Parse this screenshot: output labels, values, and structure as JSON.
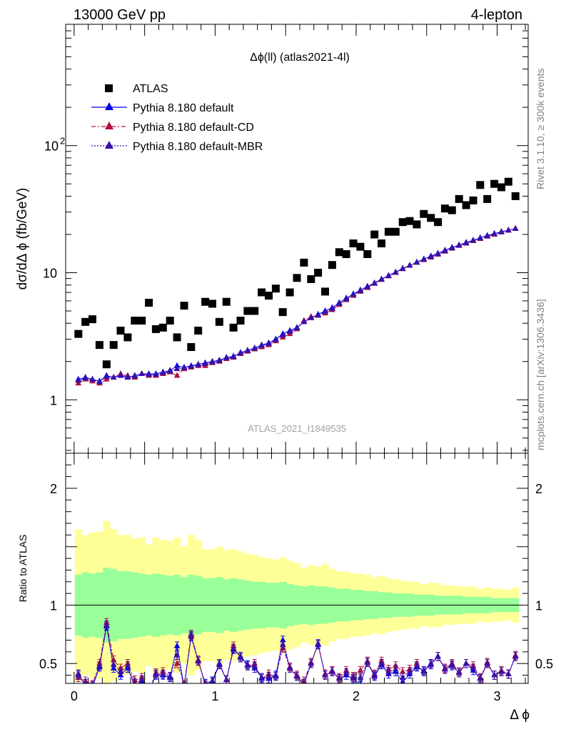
{
  "header": {
    "left": "13000 GeV pp",
    "right": "4-lepton"
  },
  "side_text": {
    "rivet": "Rivet 3.1.10, ≥ 300k events",
    "mcplots": "mcplots.cern.ch [arXiv:1306.3436]"
  },
  "chart_data": [
    {
      "type": "scatter",
      "title": "Δϕ(ll) (atlas2021-4l)",
      "ylabel": "dσ/dΔ ϕ (fb/GeV)",
      "xlabel": "",
      "yscale": "log",
      "xlim": [
        -0.06,
        3.22
      ],
      "ylim": [
        0.38,
        900
      ],
      "y_ticks": [
        {
          "value": 1,
          "label": "1"
        },
        {
          "value": 10,
          "label": "10"
        },
        {
          "value": 100,
          "label": "10²"
        }
      ],
      "watermark": "ATLAS_2021_I1849535",
      "legend_position": "top-left",
      "legend": [
        "ATLAS",
        "Pythia 8.180 default",
        "Pythia 8.180 default-CD",
        "Pythia 8.180 default-MBR"
      ],
      "colors": {
        "ATLAS": "#000000",
        "default": "#0000ee",
        "CD": "#b0103a",
        "MBR": "#3a10a8"
      },
      "x": [
        0.03,
        0.08,
        0.13,
        0.18,
        0.23,
        0.28,
        0.33,
        0.38,
        0.43,
        0.48,
        0.53,
        0.58,
        0.63,
        0.68,
        0.73,
        0.78,
        0.83,
        0.88,
        0.93,
        0.98,
        1.03,
        1.08,
        1.13,
        1.18,
        1.23,
        1.28,
        1.33,
        1.38,
        1.43,
        1.48,
        1.53,
        1.58,
        1.63,
        1.68,
        1.73,
        1.78,
        1.83,
        1.88,
        1.93,
        1.98,
        2.03,
        2.08,
        2.13,
        2.18,
        2.23,
        2.28,
        2.33,
        2.38,
        2.43,
        2.48,
        2.53,
        2.58,
        2.63,
        2.68,
        2.73,
        2.78,
        2.83,
        2.88,
        2.93,
        2.98,
        3.03,
        3.08,
        3.13
      ],
      "series": [
        {
          "name": "ATLAS",
          "values": [
            3.3,
            4.1,
            4.3,
            2.7,
            1.9,
            2.7,
            3.5,
            3.1,
            4.2,
            4.2,
            5.8,
            3.6,
            3.7,
            4.2,
            3.1,
            5.5,
            2.6,
            3.5,
            5.9,
            5.7,
            4.1,
            5.9,
            3.7,
            4.2,
            5.0,
            5.0,
            7.0,
            6.6,
            7.5,
            4.9,
            7.0,
            9.1,
            12.0,
            8.9,
            10.0,
            7.1,
            11.5,
            14.5,
            14.0,
            17.0,
            16.0,
            14.0,
            20.0,
            17.0,
            21.0,
            21.0,
            25.0,
            25.5,
            24.0,
            29.0,
            27.0,
            25.0,
            32.0,
            31.0,
            38.0,
            34.0,
            37.0,
            49.0,
            38.0,
            50.0,
            47.0,
            52.0,
            40.0
          ]
        },
        {
          "name": "Pythia 8.180 default",
          "values": [
            1.45,
            1.5,
            1.45,
            1.4,
            1.55,
            1.5,
            1.55,
            1.5,
            1.55,
            1.6,
            1.6,
            1.6,
            1.65,
            1.7,
            1.85,
            1.8,
            1.85,
            1.9,
            1.95,
            2.0,
            2.05,
            2.15,
            2.2,
            2.35,
            2.45,
            2.55,
            2.7,
            2.8,
            3.0,
            3.3,
            3.5,
            3.7,
            4.1,
            4.4,
            4.7,
            5.0,
            5.3,
            5.8,
            6.3,
            6.8,
            7.3,
            7.8,
            8.3,
            8.9,
            9.5,
            10.1,
            10.8,
            11.4,
            12.1,
            12.8,
            13.5,
            14.2,
            15.0,
            15.8,
            16.5,
            17.3,
            18.0,
            18.8,
            19.6,
            20.3,
            21.0,
            21.6,
            22.2
          ]
        },
        {
          "name": "Pythia 8.180 default-CD",
          "values": [
            1.35,
            1.45,
            1.4,
            1.35,
            1.45,
            1.5,
            1.6,
            1.55,
            1.5,
            1.6,
            1.55,
            1.55,
            1.6,
            1.65,
            1.55,
            1.75,
            1.8,
            1.85,
            1.85,
            1.95,
            2.0,
            2.1,
            2.15,
            2.3,
            2.4,
            2.5,
            2.6,
            2.7,
            2.9,
            3.1,
            3.3,
            3.6,
            4.2,
            4.5,
            4.6,
            4.8,
            5.1,
            5.6,
            6.1,
            6.6,
            7.1,
            7.6,
            8.2,
            8.8,
            9.4,
            10.0,
            10.7,
            11.4,
            12.0,
            12.6,
            13.2,
            13.9,
            14.7,
            15.5,
            16.3,
            17.0,
            17.8,
            18.5,
            19.3,
            20.0,
            20.8,
            21.5,
            22.2
          ]
        },
        {
          "name": "Pythia 8.180 default-MBR",
          "values": [
            1.42,
            1.48,
            1.44,
            1.38,
            1.52,
            1.5,
            1.57,
            1.52,
            1.53,
            1.6,
            1.58,
            1.58,
            1.63,
            1.68,
            1.75,
            1.78,
            1.83,
            1.88,
            1.92,
            1.98,
            2.03,
            2.13,
            2.18,
            2.33,
            2.43,
            2.53,
            2.66,
            2.76,
            2.96,
            3.22,
            3.43,
            3.66,
            4.12,
            4.42,
            4.63,
            4.9,
            5.2,
            5.7,
            6.2,
            6.7,
            7.2,
            7.7,
            8.25,
            8.85,
            9.45,
            10.05,
            10.75,
            11.4,
            12.05,
            12.7,
            13.35,
            14.05,
            14.85,
            15.65,
            16.4,
            17.15,
            17.9,
            18.65,
            19.45,
            20.15,
            20.9,
            21.55,
            22.2
          ]
        }
      ]
    },
    {
      "type": "line",
      "ylabel": "Ratio to ATLAS",
      "xlabel": "Δ ϕ",
      "xlim": [
        -0.06,
        3.22
      ],
      "ylim": [
        0.33,
        2.3
      ],
      "x_ticks": [
        0,
        1,
        2,
        3
      ],
      "y_ticks": [
        0.5,
        1,
        2
      ],
      "bands": {
        "inner_color": "#99ff99",
        "outer_color": "#ffff99",
        "inner_half_width": [
          0.26,
          0.28,
          0.27,
          0.28,
          0.32,
          0.31,
          0.29,
          0.29,
          0.28,
          0.27,
          0.26,
          0.27,
          0.26,
          0.25,
          0.26,
          0.24,
          0.26,
          0.25,
          0.23,
          0.23,
          0.24,
          0.22,
          0.23,
          0.22,
          0.21,
          0.2,
          0.2,
          0.19,
          0.19,
          0.2,
          0.18,
          0.17,
          0.16,
          0.17,
          0.16,
          0.16,
          0.15,
          0.14,
          0.14,
          0.13,
          0.13,
          0.12,
          0.12,
          0.11,
          0.11,
          0.1,
          0.1,
          0.1,
          0.09,
          0.09,
          0.09,
          0.08,
          0.08,
          0.08,
          0.08,
          0.07,
          0.07,
          0.07,
          0.07,
          0.06,
          0.06,
          0.06,
          0.06
        ],
        "outer_half_width": [
          0.65,
          0.6,
          0.62,
          0.63,
          0.72,
          0.65,
          0.6,
          0.6,
          0.57,
          0.58,
          0.52,
          0.58,
          0.56,
          0.55,
          0.58,
          0.5,
          0.6,
          0.56,
          0.48,
          0.48,
          0.5,
          0.47,
          0.48,
          0.46,
          0.44,
          0.43,
          0.41,
          0.4,
          0.39,
          0.41,
          0.38,
          0.36,
          0.32,
          0.34,
          0.33,
          0.35,
          0.31,
          0.29,
          0.29,
          0.27,
          0.27,
          0.26,
          0.24,
          0.25,
          0.23,
          0.22,
          0.21,
          0.2,
          0.2,
          0.18,
          0.19,
          0.19,
          0.17,
          0.17,
          0.16,
          0.16,
          0.16,
          0.14,
          0.15,
          0.14,
          0.14,
          0.13,
          0.15
        ]
      },
      "series": [
        {
          "name": "Pythia 8.180 default",
          "values": [
            0.41,
            0.31,
            0.3,
            0.47,
            0.82,
            0.46,
            0.4,
            0.46,
            0.31,
            0.35,
            0.26,
            0.4,
            0.4,
            0.38,
            0.65,
            0.3,
            0.73,
            0.52,
            0.33,
            0.35,
            0.5,
            0.36,
            0.62,
            0.56,
            0.49,
            0.46,
            0.38,
            0.37,
            0.4,
            0.7,
            0.46,
            0.39,
            0.32,
            0.5,
            0.67,
            0.4,
            0.43,
            0.37,
            0.4,
            0.37,
            0.32,
            0.51,
            0.39,
            0.49,
            0.41,
            0.43,
            0.34,
            0.41,
            0.47,
            0.44,
            0.5,
            0.56,
            0.45,
            0.48,
            0.42,
            0.5,
            0.44,
            0.37,
            0.5,
            0.4,
            0.43,
            0.41,
            0.56
          ]
        },
        {
          "name": "Pythia 8.180 default-CD",
          "values": [
            0.38,
            0.35,
            0.32,
            0.5,
            0.85,
            0.53,
            0.46,
            0.5,
            0.36,
            0.38,
            0.27,
            0.42,
            0.43,
            0.39,
            0.5,
            0.32,
            0.75,
            0.53,
            0.31,
            0.34,
            0.49,
            0.36,
            0.65,
            0.55,
            0.48,
            0.5,
            0.37,
            0.41,
            0.39,
            0.63,
            0.47,
            0.4,
            0.35,
            0.51,
            0.66,
            0.41,
            0.44,
            0.38,
            0.44,
            0.39,
            0.44,
            0.52,
            0.41,
            0.52,
            0.45,
            0.48,
            0.43,
            0.45,
            0.5,
            0.43,
            0.49,
            0.56,
            0.46,
            0.5,
            0.43,
            0.5,
            0.48,
            0.38,
            0.51,
            0.4,
            0.44,
            0.41,
            0.57
          ]
        },
        {
          "name": "Pythia 8.180 default-MBR",
          "values": [
            0.4,
            0.33,
            0.31,
            0.48,
            0.83,
            0.49,
            0.43,
            0.48,
            0.33,
            0.36,
            0.27,
            0.41,
            0.41,
            0.39,
            0.57,
            0.31,
            0.74,
            0.52,
            0.32,
            0.34,
            0.49,
            0.36,
            0.63,
            0.55,
            0.48,
            0.48,
            0.37,
            0.39,
            0.39,
            0.66,
            0.46,
            0.39,
            0.33,
            0.5,
            0.66,
            0.4,
            0.43,
            0.37,
            0.42,
            0.38,
            0.38,
            0.51,
            0.4,
            0.5,
            0.43,
            0.45,
            0.38,
            0.43,
            0.48,
            0.43,
            0.49,
            0.56,
            0.45,
            0.49,
            0.42,
            0.5,
            0.46,
            0.37,
            0.5,
            0.4,
            0.43,
            0.41,
            0.56
          ]
        }
      ]
    }
  ]
}
